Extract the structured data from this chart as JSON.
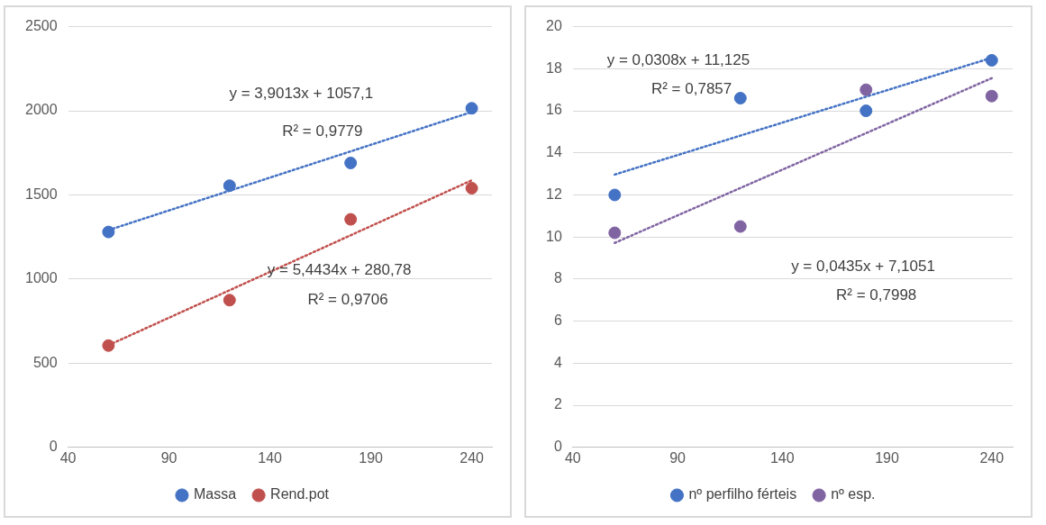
{
  "chart_data": [
    {
      "type": "scatter",
      "xlim": [
        40,
        250
      ],
      "xticks": [
        40,
        90,
        140,
        190,
        240
      ],
      "ylim": [
        0,
        2500
      ],
      "yticks": [
        0,
        500,
        1000,
        1500,
        2000,
        2500
      ],
      "grid": "y",
      "legend": "bottom",
      "marker": "circle",
      "series": [
        {
          "name": "Massa",
          "color": "#4472c4",
          "x": [
            60,
            120,
            180,
            240
          ],
          "values": [
            1280,
            1555,
            1690,
            2015
          ]
        },
        {
          "name": "Rend.pot",
          "color": "#c0504d",
          "x": [
            60,
            120,
            180,
            240
          ],
          "values": [
            605,
            875,
            1355,
            1540
          ]
        },
        {
          "type": "line",
          "line_style": "dotted",
          "marker": "none",
          "color": "#4472c4",
          "x": [
            60,
            240
          ],
          "values": [
            1291,
            1993
          ]
        },
        {
          "type": "line",
          "line_style": "dotted",
          "marker": "none",
          "color": "#c0504d",
          "x": [
            60,
            240
          ],
          "values": [
            607,
            1587
          ]
        }
      ],
      "annotations": [
        "y = 3,9013x + 1057,1",
        "R² = 0,9779",
        "y = 5,4434x + 280,78",
        "R² = 0,9706"
      ]
    },
    {
      "type": "scatter",
      "xlim": [
        40,
        250
      ],
      "xticks": [
        40,
        90,
        140,
        190,
        240
      ],
      "ylim": [
        0,
        20
      ],
      "yticks": [
        0,
        2,
        4,
        6,
        8,
        10,
        12,
        14,
        16,
        18,
        20
      ],
      "grid": "y",
      "legend": "bottom",
      "marker": "circle",
      "series": [
        {
          "name": "nº perfilho férteis",
          "color": "#4472c4",
          "x": [
            60,
            120,
            180,
            240
          ],
          "values": [
            12,
            16.6,
            16,
            18.4
          ]
        },
        {
          "name": "nº esp.",
          "color": "#8064a2",
          "x": [
            60,
            120,
            180,
            240
          ],
          "values": [
            10.2,
            10.5,
            17,
            16.7
          ]
        },
        {
          "type": "line",
          "line_style": "dotted",
          "marker": "none",
          "color": "#4472c4",
          "x": [
            60,
            240
          ],
          "values": [
            12.97,
            18.52
          ]
        },
        {
          "type": "line",
          "line_style": "dotted",
          "marker": "none",
          "color": "#8064a2",
          "x": [
            60,
            240
          ],
          "values": [
            9.72,
            17.55
          ]
        }
      ],
      "annotations": [
        "y = 0,0308x + 11,125",
        "R² = 0,7857",
        "y = 0,0435x + 7,1051",
        "R² = 0,7998"
      ]
    }
  ]
}
